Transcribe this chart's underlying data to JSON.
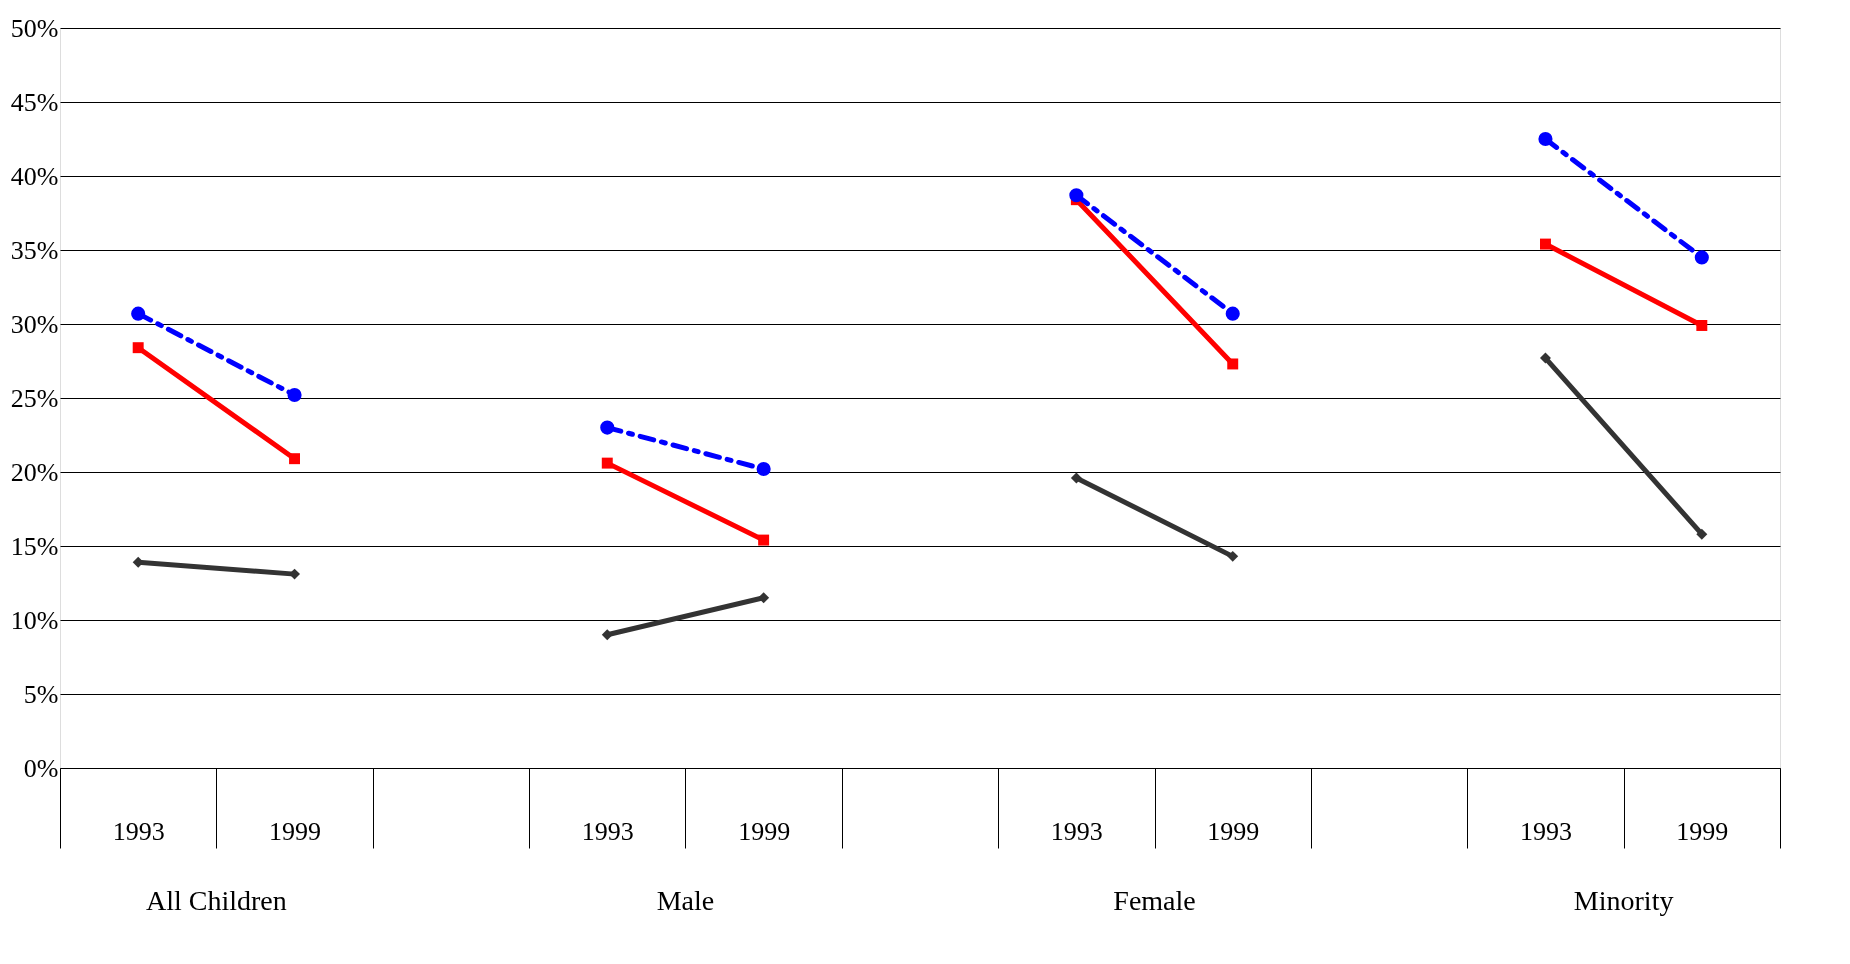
{
  "chart_data": {
    "type": "line",
    "categories": [
      "1993",
      "1999",
      null,
      "1993",
      "1999",
      null,
      "1993",
      "1999",
      null,
      "1993",
      "1999"
    ],
    "series": [
      {
        "color": "#0000ff",
        "line_style": "dashed",
        "marker": "circle",
        "values": [
          30.7,
          25.2,
          null,
          23.0,
          20.2,
          null,
          38.7,
          30.7,
          null,
          42.5,
          34.5
        ]
      },
      {
        "color": "#ff0000",
        "line_style": "solid",
        "marker": "square",
        "values": [
          28.4,
          20.9,
          null,
          20.6,
          15.4,
          null,
          38.4,
          27.3,
          null,
          35.4,
          29.9
        ]
      },
      {
        "color": "#333333",
        "line_style": "solid",
        "marker": "diamond",
        "values": [
          13.9,
          13.1,
          null,
          9.0,
          11.5,
          null,
          19.6,
          14.3,
          null,
          27.7,
          15.8
        ]
      }
    ],
    "annotations": [
      "All Children",
      "Male",
      "Female",
      "Minority"
    ],
    "ylim": [
      0,
      50
    ],
    "yticks": [
      {
        "value": 0,
        "label": "0%"
      },
      {
        "value": 5,
        "label": "5%"
      },
      {
        "value": 10,
        "label": "10%"
      },
      {
        "value": 15,
        "label": "15%"
      },
      {
        "value": 20,
        "label": "20%"
      },
      {
        "value": 25,
        "label": "25%"
      },
      {
        "value": 30,
        "label": "30%"
      },
      {
        "value": 35,
        "label": "35%"
      },
      {
        "value": 40,
        "label": "40%"
      },
      {
        "value": 45,
        "label": "45%"
      },
      {
        "value": 50,
        "label": "50%"
      }
    ],
    "grid": "y"
  }
}
